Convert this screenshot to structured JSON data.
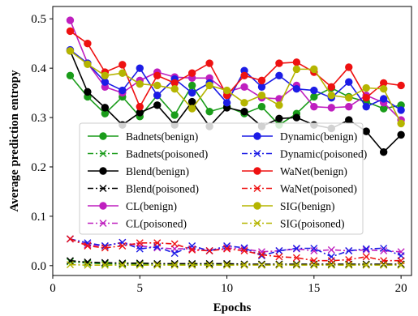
{
  "chart_data": {
    "type": "line",
    "title": "",
    "xlabel": "Epochs",
    "ylabel": "Average prediction entropy",
    "xlim": [
      0,
      20.6
    ],
    "ylim": [
      -0.02,
      0.525
    ],
    "xticks": [
      0,
      5,
      10,
      15,
      20
    ],
    "yticks": [
      0.0,
      0.1,
      0.2,
      0.3,
      0.4,
      0.5
    ],
    "xtick_labels": [
      "0",
      "5",
      "10",
      "15",
      "20"
    ],
    "ytick_labels": [
      "0.0",
      "0.1",
      "0.2",
      "0.3",
      "0.4",
      "0.5"
    ],
    "grid": false,
    "legend_position": "center",
    "legend_columns": 2,
    "x": [
      1,
      2,
      3,
      4,
      5,
      6,
      7,
      8,
      9,
      10,
      11,
      12,
      13,
      14,
      15,
      16,
      17,
      18,
      19,
      20
    ],
    "series": [
      {
        "name": "Badnets(benign)",
        "color": "#1a9c1a",
        "linestyle": "solid",
        "marker": "circle",
        "values": [
          0.385,
          0.342,
          0.308,
          0.342,
          0.302,
          0.345,
          0.305,
          0.365,
          0.312,
          0.322,
          0.308,
          0.322,
          0.285,
          0.308,
          0.342,
          0.36,
          0.342,
          0.332,
          0.318,
          0.325
        ]
      },
      {
        "name": "Badnets(poisoned)",
        "color": "#1a9c1a",
        "linestyle": "dashdot",
        "marker": "x",
        "values": [
          0.008,
          0.005,
          0.004,
          0.003,
          0.003,
          0.002,
          0.002,
          0.003,
          0.002,
          0.002,
          0.002,
          0.002,
          0.002,
          0.002,
          0.002,
          0.002,
          0.002,
          0.002,
          0.002,
          0.002
        ]
      },
      {
        "name": "Blend(benign)",
        "color": "#000000",
        "linestyle": "solid",
        "marker": "circle",
        "values": [
          0.435,
          0.352,
          0.32,
          0.285,
          0.31,
          0.325,
          0.285,
          0.332,
          0.282,
          0.32,
          0.312,
          0.282,
          0.298,
          0.3,
          0.285,
          0.278,
          0.295,
          0.272,
          0.23,
          0.265
        ]
      },
      {
        "name": "Blend(poisoned)",
        "color": "#000000",
        "linestyle": "dashdot",
        "marker": "x",
        "values": [
          0.01,
          0.007,
          0.006,
          0.005,
          0.005,
          0.004,
          0.004,
          0.004,
          0.004,
          0.004,
          0.003,
          0.003,
          0.003,
          0.003,
          0.003,
          0.003,
          0.003,
          0.003,
          0.003,
          0.003
        ]
      },
      {
        "name": "CL(benign)",
        "color": "#bf1fbf",
        "linestyle": "solid",
        "marker": "circle",
        "values": [
          0.497,
          0.41,
          0.362,
          0.35,
          0.375,
          0.392,
          0.382,
          0.38,
          0.38,
          0.352,
          0.362,
          0.34,
          0.338,
          0.365,
          0.322,
          0.32,
          0.322,
          0.345,
          0.33,
          0.295
        ]
      },
      {
        "name": "CL(poisoned)",
        "color": "#bf1fbf",
        "linestyle": "dashdot",
        "marker": "x",
        "values": [
          0.054,
          0.042,
          0.04,
          0.047,
          0.04,
          0.036,
          0.034,
          0.034,
          0.03,
          0.036,
          0.034,
          0.028,
          0.03,
          0.034,
          0.03,
          0.032,
          0.03,
          0.032,
          0.03,
          0.028
        ]
      },
      {
        "name": "Dynamic(benign)",
        "color": "#1c1ce6",
        "linestyle": "solid",
        "marker": "circle",
        "values": [
          0.437,
          0.41,
          0.372,
          0.355,
          0.4,
          0.345,
          0.378,
          0.35,
          0.37,
          0.33,
          0.395,
          0.362,
          0.385,
          0.358,
          0.355,
          0.34,
          0.372,
          0.322,
          0.338,
          0.315
        ]
      },
      {
        "name": "Dynamic(poisoned)",
        "color": "#1c1ce6",
        "linestyle": "dashdot",
        "marker": "x",
        "values": [
          0.054,
          0.046,
          0.04,
          0.047,
          0.034,
          0.038,
          0.025,
          0.04,
          0.03,
          0.04,
          0.036,
          0.02,
          0.03,
          0.035,
          0.035,
          0.018,
          0.03,
          0.034,
          0.035,
          0.02
        ]
      },
      {
        "name": "WaNet(benign)",
        "color": "#ee1111",
        "linestyle": "solid",
        "marker": "circle",
        "values": [
          0.475,
          0.45,
          0.392,
          0.407,
          0.322,
          0.385,
          0.37,
          0.39,
          0.41,
          0.345,
          0.385,
          0.375,
          0.41,
          0.412,
          0.392,
          0.362,
          0.402,
          0.34,
          0.37,
          0.365
        ]
      },
      {
        "name": "WaNet(poisoned)",
        "color": "#ee1111",
        "linestyle": "dashdot",
        "marker": "x",
        "values": [
          0.054,
          0.04,
          0.036,
          0.04,
          0.046,
          0.046,
          0.044,
          0.032,
          0.03,
          0.034,
          0.03,
          0.022,
          0.018,
          0.016,
          0.01,
          0.01,
          0.012,
          0.018,
          0.01,
          0.01
        ]
      },
      {
        "name": "SIG(benign)",
        "color": "#b5b500",
        "linestyle": "solid",
        "marker": "circle",
        "values": [
          0.435,
          0.408,
          0.385,
          0.39,
          0.368,
          0.365,
          0.358,
          0.318,
          0.365,
          0.355,
          0.33,
          0.345,
          0.325,
          0.398,
          0.398,
          0.345,
          0.34,
          0.36,
          0.358,
          0.288
        ]
      },
      {
        "name": "SIG(poisoned)",
        "color": "#b5b500",
        "linestyle": "dashdot",
        "marker": "x",
        "values": [
          0.002,
          0.001,
          0.001,
          0.001,
          0.001,
          0.001,
          0.001,
          0.001,
          0.001,
          0.001,
          0.001,
          0.001,
          0.001,
          0.001,
          0.001,
          0.001,
          0.001,
          0.001,
          0.001,
          0.001
        ]
      }
    ]
  }
}
